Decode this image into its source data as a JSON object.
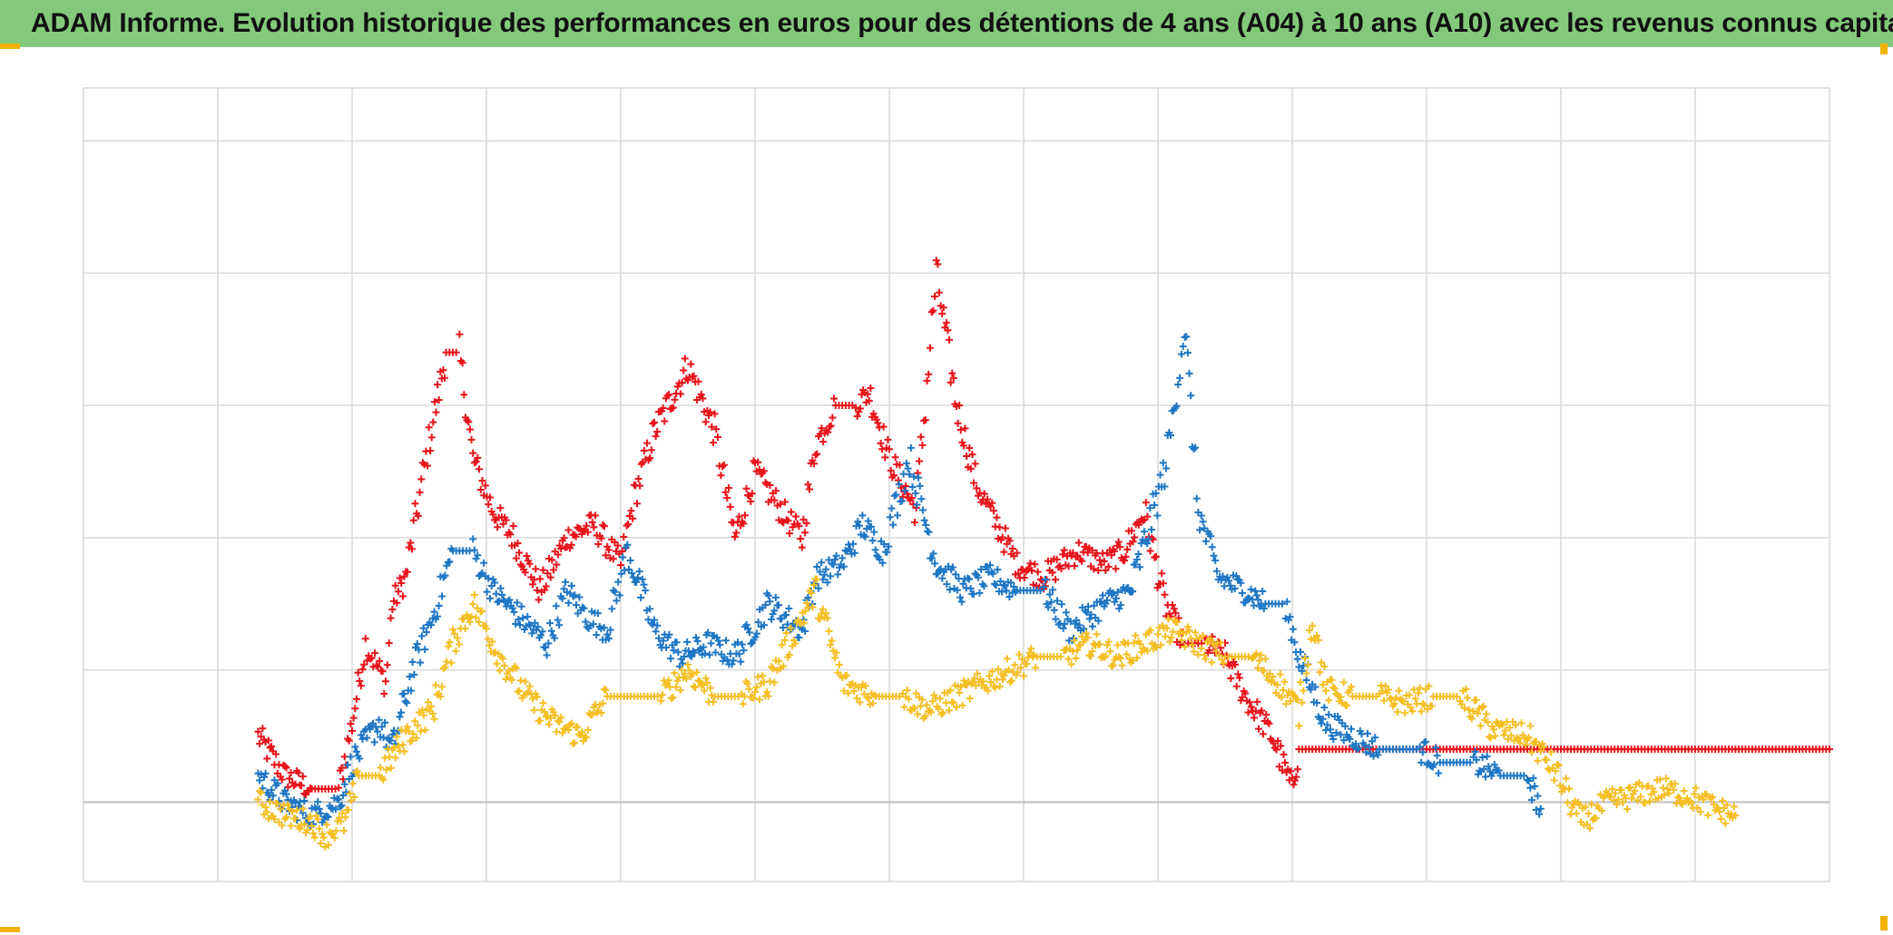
{
  "title": "ADAM Informe. Evolution historique des performances en euros pour des détentions de 4 ans (A04) à 10 ans (A10) avec les revenus connus capitalisés",
  "colors": {
    "title_bg": "#84c97b",
    "grid": "#d9d9d9",
    "zero_line": "#bfbfbf",
    "corner_accent": "#f2b300"
  },
  "chart_data": {
    "type": "scatter",
    "title": "ADAM Informe. Evolution historique des performances en euros pour des détentions de 4 ans (A04) à 10 ans (A10) avec les revenus connus capitalisés",
    "xlabel": "",
    "ylabel": "",
    "tick_labels_visible": false,
    "xlim": [
      0,
      13
    ],
    "ylim": [
      -0.6,
      5.4
    ],
    "x_gridlines": [
      1,
      2,
      3,
      4,
      5,
      6,
      7,
      8,
      9,
      10,
      11,
      12
    ],
    "y_gridlines": [
      1,
      2,
      3,
      4,
      5
    ],
    "zero_line": 0,
    "grid": true,
    "marker": "plus",
    "series": [
      {
        "color": "#e8141c",
        "points": [
          [
            1.3,
            0.5
          ],
          [
            1.5,
            0.2
          ],
          [
            1.7,
            0.1
          ],
          [
            1.9,
            0.1
          ],
          [
            2.0,
            0.6
          ],
          [
            2.1,
            1.2
          ],
          [
            2.25,
            0.9
          ],
          [
            2.3,
            1.5
          ],
          [
            2.4,
            1.7
          ],
          [
            2.55,
            2.6
          ],
          [
            2.7,
            3.4
          ],
          [
            2.8,
            3.4
          ],
          [
            2.9,
            2.6
          ],
          [
            3.05,
            2.2
          ],
          [
            3.2,
            2.0
          ],
          [
            3.4,
            1.6
          ],
          [
            3.6,
            2.0
          ],
          [
            3.8,
            2.1
          ],
          [
            4.0,
            1.8
          ],
          [
            4.1,
            2.3
          ],
          [
            4.25,
            2.8
          ],
          [
            4.5,
            3.3
          ],
          [
            4.7,
            2.8
          ],
          [
            4.85,
            2.0
          ],
          [
            5.0,
            2.5
          ],
          [
            5.2,
            2.2
          ],
          [
            5.35,
            2.0
          ],
          [
            5.45,
            2.7
          ],
          [
            5.6,
            3.0
          ],
          [
            5.75,
            3.0
          ],
          [
            5.85,
            3.1
          ],
          [
            6.0,
            2.6
          ],
          [
            6.2,
            2.2
          ],
          [
            6.35,
            4.0
          ],
          [
            6.5,
            3.0
          ],
          [
            6.65,
            2.4
          ],
          [
            6.8,
            2.1
          ],
          [
            6.95,
            1.8
          ],
          [
            7.15,
            1.7
          ],
          [
            7.4,
            1.9
          ],
          [
            7.6,
            1.8
          ],
          [
            7.75,
            1.9
          ],
          [
            7.9,
            2.2
          ],
          [
            8.05,
            1.5
          ],
          [
            8.2,
            1.2
          ],
          [
            8.35,
            1.2
          ],
          [
            8.5,
            1.1
          ],
          [
            8.65,
            0.8
          ],
          [
            8.85,
            0.5
          ],
          [
            9.0,
            0.1
          ],
          [
            9.05,
            0.4
          ],
          [
            10.5,
            0.4
          ],
          [
            12.0,
            0.4
          ],
          [
            13.0,
            0.4
          ]
        ]
      },
      {
        "color": "#1f77c4",
        "points": [
          [
            1.3,
            0.2
          ],
          [
            1.5,
            0.0
          ],
          [
            1.7,
            -0.1
          ],
          [
            1.9,
            0.0
          ],
          [
            2.0,
            0.3
          ],
          [
            2.2,
            0.6
          ],
          [
            2.3,
            0.4
          ],
          [
            2.45,
            1.0
          ],
          [
            2.6,
            1.4
          ],
          [
            2.75,
            1.9
          ],
          [
            2.9,
            1.9
          ],
          [
            3.05,
            1.6
          ],
          [
            3.25,
            1.4
          ],
          [
            3.45,
            1.2
          ],
          [
            3.6,
            1.6
          ],
          [
            3.75,
            1.4
          ],
          [
            3.9,
            1.3
          ],
          [
            4.05,
            1.9
          ],
          [
            4.25,
            1.3
          ],
          [
            4.45,
            1.1
          ],
          [
            4.65,
            1.2
          ],
          [
            4.85,
            1.1
          ],
          [
            5.1,
            1.5
          ],
          [
            5.35,
            1.3
          ],
          [
            5.45,
            1.7
          ],
          [
            5.65,
            1.8
          ],
          [
            5.8,
            2.1
          ],
          [
            5.95,
            1.9
          ],
          [
            6.15,
            2.6
          ],
          [
            6.35,
            1.8
          ],
          [
            6.55,
            1.6
          ],
          [
            6.75,
            1.7
          ],
          [
            6.95,
            1.6
          ],
          [
            7.15,
            1.6
          ],
          [
            7.35,
            1.3
          ],
          [
            7.6,
            1.5
          ],
          [
            7.8,
            1.6
          ],
          [
            8.05,
            2.5
          ],
          [
            8.15,
            3.2
          ],
          [
            8.2,
            3.6
          ],
          [
            8.3,
            2.2
          ],
          [
            8.45,
            1.7
          ],
          [
            8.65,
            1.6
          ],
          [
            8.8,
            1.5
          ],
          [
            8.95,
            1.5
          ],
          [
            9.05,
            1.1
          ],
          [
            9.25,
            0.6
          ],
          [
            9.45,
            0.5
          ],
          [
            9.65,
            0.4
          ],
          [
            9.8,
            0.4
          ],
          [
            9.95,
            0.4
          ],
          [
            10.1,
            0.3
          ],
          [
            10.35,
            0.3
          ],
          [
            10.55,
            0.2
          ],
          [
            10.75,
            0.2
          ],
          [
            10.85,
            -0.05
          ]
        ]
      },
      {
        "color": "#f5bf24",
        "points": [
          [
            1.3,
            0.0
          ],
          [
            1.5,
            -0.1
          ],
          [
            1.7,
            -0.15
          ],
          [
            1.8,
            -0.25
          ],
          [
            1.95,
            -0.15
          ],
          [
            2.05,
            0.2
          ],
          [
            2.2,
            0.2
          ],
          [
            2.4,
            0.5
          ],
          [
            2.6,
            0.7
          ],
          [
            2.75,
            1.2
          ],
          [
            2.9,
            1.5
          ],
          [
            3.1,
            1.1
          ],
          [
            3.3,
            0.8
          ],
          [
            3.5,
            0.6
          ],
          [
            3.7,
            0.5
          ],
          [
            3.9,
            0.8
          ],
          [
            4.1,
            0.8
          ],
          [
            4.3,
            0.8
          ],
          [
            4.5,
            1.0
          ],
          [
            4.7,
            0.8
          ],
          [
            4.9,
            0.8
          ],
          [
            5.1,
            0.9
          ],
          [
            5.3,
            1.3
          ],
          [
            5.45,
            1.6
          ],
          [
            5.65,
            0.9
          ],
          [
            5.9,
            0.8
          ],
          [
            6.1,
            0.8
          ],
          [
            6.3,
            0.7
          ],
          [
            6.5,
            0.8
          ],
          [
            6.7,
            0.9
          ],
          [
            6.9,
            1.0
          ],
          [
            7.1,
            1.1
          ],
          [
            7.3,
            1.1
          ],
          [
            7.5,
            1.2
          ],
          [
            7.7,
            1.1
          ],
          [
            7.9,
            1.2
          ],
          [
            8.1,
            1.3
          ],
          [
            8.3,
            1.2
          ],
          [
            8.5,
            1.1
          ],
          [
            8.7,
            1.1
          ],
          [
            8.9,
            0.9
          ],
          [
            9.05,
            0.7
          ],
          [
            9.15,
            1.4
          ],
          [
            9.25,
            0.85
          ],
          [
            9.45,
            0.8
          ],
          [
            9.65,
            0.8
          ],
          [
            9.85,
            0.75
          ],
          [
            10.05,
            0.8
          ],
          [
            10.25,
            0.8
          ],
          [
            10.5,
            0.55
          ],
          [
            10.75,
            0.5
          ],
          [
            10.95,
            0.25
          ],
          [
            11.15,
            -0.15
          ],
          [
            11.35,
            0.0
          ],
          [
            11.55,
            0.05
          ],
          [
            11.75,
            0.1
          ],
          [
            11.95,
            0.05
          ],
          [
            12.15,
            -0.05
          ],
          [
            12.3,
            -0.1
          ]
        ]
      }
    ]
  }
}
